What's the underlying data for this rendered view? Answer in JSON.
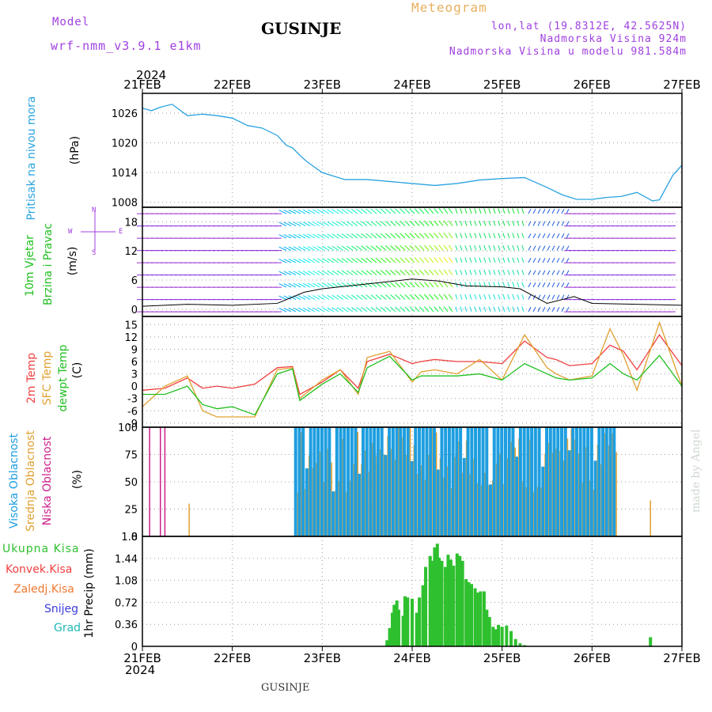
{
  "header": {
    "model_label": "Model",
    "model_name": "wrf-nmm_v3.9.1 e1km",
    "meteogram_label": "Meteogram",
    "station": "GUSINJE",
    "lonlat": "lon,lat (19.8312E, 42.5625N)",
    "elevation": "Nadmorska Visina 924m",
    "model_elevation": "Nadmorska Visina u modelu 981.584m",
    "footer_station": "GUSINJE",
    "watermark": "made by Angel"
  },
  "colors": {
    "pressure": "#29a3e0",
    "temp2m": "#f04040",
    "sfc_temp": "#e0a030",
    "dewpt": "#20c020",
    "visoka": "#1e9ee0",
    "srednja": "#e0a030",
    "niska": "#cc1e8c",
    "ukupna": "#2ec02e",
    "konvek": "#f04040",
    "zaledj": "#f07830",
    "snijeg": "#3c3cdc",
    "grad": "#20b8b8",
    "model_purple": "#a040e0",
    "meteogram_orange": "#e8b060"
  },
  "axes": {
    "year_top": "2024",
    "year_bottom": "2024",
    "date_ticks": [
      "21FEB",
      "22FEB",
      "23FEB",
      "24FEB",
      "25FEB",
      "26FEB",
      "27FEB"
    ]
  },
  "chart_data": [
    {
      "type": "line",
      "panel": "pressure",
      "label_left": "Pritisak na nivou mora",
      "unit": "(hPa)",
      "ylim": [
        1007,
        1030
      ],
      "yticks": [
        "1008",
        "1014",
        "1020",
        "1026"
      ],
      "x_day": [
        0,
        0.1,
        0.2,
        0.33,
        0.5,
        0.67,
        0.83,
        1.0,
        1.17,
        1.33,
        1.5,
        1.6,
        1.67,
        1.75,
        1.83,
        2.0,
        2.25,
        2.5,
        2.75,
        3.0,
        3.25,
        3.5,
        3.75,
        4.0,
        4.25,
        4.5,
        4.67,
        4.83,
        5.0,
        5.17,
        5.33,
        5.5,
        5.67,
        5.75,
        5.9,
        6.0
      ],
      "y": [
        1027,
        1026.5,
        1027.2,
        1027.8,
        1025.5,
        1025.8,
        1025.5,
        1025,
        1023.5,
        1023,
        1021.5,
        1019.5,
        1019,
        1017.5,
        1016.2,
        1014,
        1012.6,
        1012.6,
        1012.2,
        1011.8,
        1011.4,
        1011.8,
        1012.5,
        1012.8,
        1013,
        1011,
        1009.5,
        1008.6,
        1008.6,
        1009,
        1009.2,
        1010,
        1008.3,
        1008.5,
        1013.5,
        1015.5
      ]
    },
    {
      "type": "line",
      "panel": "wind",
      "label_left": "10m Vjetar Brzina i Pravac",
      "unit": "(m/s)",
      "compass": [
        "N",
        "W",
        "E",
        "S"
      ],
      "ylim": [
        -1.5,
        21
      ],
      "yticks": [
        "0",
        "6",
        "12",
        "18"
      ],
      "x_day": [
        0,
        0.5,
        1.0,
        1.5,
        1.8,
        2.0,
        2.5,
        3.0,
        3.3,
        3.6,
        4.0,
        4.2,
        4.5,
        4.8,
        5.0,
        5.5,
        6.0
      ],
      "y": [
        0.6,
        1.0,
        0.8,
        1.2,
        3.5,
        4.2,
        5.2,
        6.2,
        5.8,
        4.8,
        4.6,
        4.2,
        1.2,
        2.6,
        1.2,
        1.0,
        0.8
      ]
    },
    {
      "type": "line",
      "panel": "temperature",
      "labels_left": [
        "2m Temp",
        "SFC Temp",
        "dewpt Temp"
      ],
      "unit": "(C)",
      "ylim": [
        -10,
        17
      ],
      "yticks": [
        "-9",
        "-6",
        "-3",
        "0",
        "3",
        "6",
        "9",
        "12",
        "15"
      ],
      "x_day": [
        0,
        0.25,
        0.5,
        0.67,
        0.83,
        1.0,
        1.25,
        1.5,
        1.67,
        1.75,
        2.0,
        2.2,
        2.4,
        2.5,
        2.75,
        3.0,
        3.1,
        3.25,
        3.5,
        3.75,
        4.0,
        4.25,
        4.5,
        4.6,
        4.75,
        5.0,
        5.2,
        5.35,
        5.5,
        5.75,
        6.0
      ],
      "series": [
        {
          "name": "2m Temp",
          "values": [
            -1,
            -0.5,
            2,
            -0.5,
            0,
            -0.5,
            0.5,
            4.5,
            4.8,
            -2,
            1,
            4,
            -0.5,
            6,
            7.8,
            5.5,
            6,
            6.5,
            6,
            6,
            5.5,
            11,
            7,
            6.5,
            5,
            5.5,
            10,
            8.5,
            4,
            12.5,
            5
          ]
        },
        {
          "name": "SFC Temp",
          "values": [
            -5,
            0,
            2.5,
            -6,
            -7.5,
            -7.5,
            -7.5,
            4,
            4.5,
            -3,
            1.5,
            4,
            -2,
            7,
            8.5,
            1,
            3.5,
            4,
            3,
            6.5,
            1.5,
            12.5,
            4.5,
            3,
            1.5,
            2.5,
            14,
            7.5,
            -1,
            15.5,
            0
          ]
        },
        {
          "name": "dewpt Temp",
          "values": [
            -2,
            -2,
            0,
            -4.5,
            -5.5,
            -5,
            -7,
            3,
            4.2,
            -3.5,
            0.5,
            3,
            -1.5,
            4.5,
            7.3,
            1.5,
            2.5,
            2.5,
            2.5,
            3,
            1.5,
            5.5,
            3,
            2,
            1.5,
            2,
            5.5,
            3,
            1.5,
            7.5,
            0
          ]
        }
      ]
    },
    {
      "type": "bar",
      "panel": "cloud",
      "labels_left": [
        "Visoka Oblacnost",
        "Srednja Oblacnost",
        "Niska Oblacnost"
      ],
      "unit": "(%)",
      "ylim": [
        0,
        100
      ],
      "yticks": [
        "0",
        "25",
        "50",
        "75",
        "100"
      ],
      "cloudy_start_day": 1.7,
      "cloudy_end_day": 5.25,
      "niska_spikes_day": [
        0.08,
        0.2,
        0.25
      ],
      "srednja_spikes": [
        {
          "x": 0.52,
          "v": 30
        },
        {
          "x": 5.65,
          "v": 33
        }
      ]
    },
    {
      "type": "bar",
      "panel": "precip",
      "labels_left": [
        "Ukupna Kisa",
        "Konvek.Kisa",
        "Zaledj.Kisa",
        "Snijeg",
        "Grad"
      ],
      "ylabel": "1hr Precip (mm)",
      "ylim": [
        0,
        1.8
      ],
      "yticks": [
        "0",
        "0.36",
        "0.72",
        "1.08",
        "1.44",
        "1.8"
      ],
      "x_day": [
        2.72,
        2.75,
        2.78,
        2.8,
        2.83,
        2.85,
        2.9,
        2.92,
        2.95,
        3.0,
        3.05,
        3.08,
        3.12,
        3.15,
        3.2,
        3.22,
        3.25,
        3.28,
        3.3,
        3.33,
        3.37,
        3.4,
        3.43,
        3.46,
        3.5,
        3.53,
        3.56,
        3.6,
        3.63,
        3.66,
        3.7,
        3.73,
        3.76,
        3.8,
        3.83,
        3.86,
        3.9,
        3.93,
        3.96,
        4.0,
        4.05,
        4.1,
        4.15,
        4.2,
        4.25,
        5.65
      ],
      "values": [
        0.1,
        0.3,
        0.55,
        0.68,
        0.75,
        0.6,
        0.5,
        0.82,
        0.8,
        0.78,
        0.55,
        0.8,
        1.0,
        1.3,
        1.48,
        1.4,
        1.62,
        1.68,
        1.45,
        1.4,
        1.3,
        1.5,
        1.42,
        1.32,
        1.52,
        1.48,
        1.4,
        1.1,
        1.05,
        1.02,
        0.95,
        0.88,
        0.9,
        0.9,
        0.6,
        0.48,
        0.32,
        0.28,
        0.35,
        0.32,
        0.34,
        0.25,
        0.12,
        0.05,
        0.02,
        0.15
      ]
    }
  ]
}
